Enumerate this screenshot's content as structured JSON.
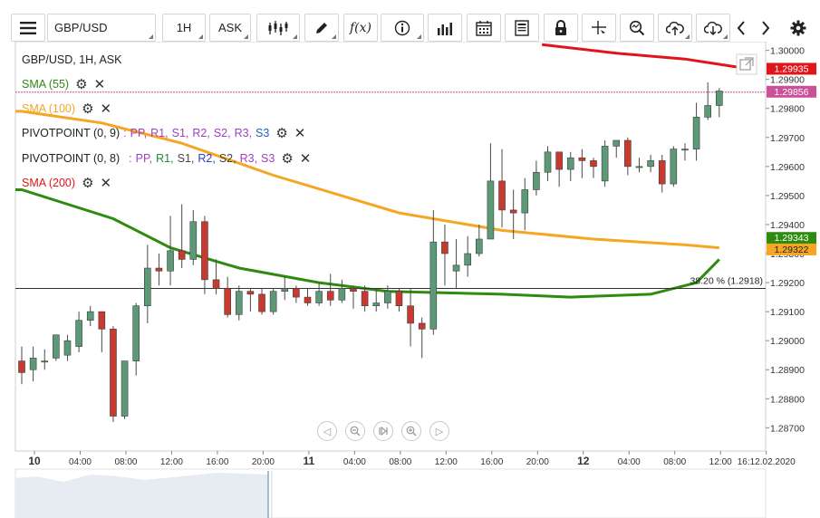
{
  "toolbar": {
    "symbol": "GBP/USD",
    "timeframe": "1H",
    "price_type": "ASK",
    "fx_label": "f(x)"
  },
  "legend": {
    "title": "GBP/USD, 1H, ASK",
    "sma55": "SMA (55)",
    "sma100": "SMA (100)",
    "pivot1": "PIVOTPOINT (0, 9)",
    "pivot2": "PIVOTPOINT (0, 8)",
    "sma200": "SMA (200)",
    "pivot_sep": ":",
    "pivot_items": [
      "PP,",
      "R1,",
      "S1,",
      "R2,",
      "S2,",
      "R3,",
      "S3"
    ],
    "pivot1_colors": [
      "#a040c0",
      "#a040c0",
      "#a040c0",
      "#a040c0",
      "#a040c0",
      "#a040c0",
      "#2060c0"
    ],
    "pivot2_colors": [
      "#a040c0",
      "#1a8a3a",
      "#444444",
      "#2b3ec8",
      "#444444",
      "#a040c0",
      "#a040c0"
    ]
  },
  "colors": {
    "up": "#5c9a77",
    "down": "#c8392f",
    "sma55": "#2f8a10",
    "sma100": "#f5a623",
    "sma200": "#e0151b",
    "current": "#cc4f9a"
  },
  "chart_data": {
    "type": "candlestick",
    "symbol": "GBP/USD",
    "ylim": [
      1.2862,
      1.3003
    ],
    "y_ticks": [
      "1.30000",
      "1.29900",
      "1.29800",
      "1.29700",
      "1.29600",
      "1.29500",
      "1.29400",
      "1.29300",
      "1.29200",
      "1.29100",
      "1.29000",
      "1.28900",
      "1.28800",
      "1.28700"
    ],
    "x_labels": [
      {
        "label": "10",
        "bold": true
      },
      {
        "label": "04:00"
      },
      {
        "label": "08:00"
      },
      {
        "label": "12:00"
      },
      {
        "label": "16:00"
      },
      {
        "label": "20:00"
      },
      {
        "label": "11",
        "bold": true
      },
      {
        "label": "04:00"
      },
      {
        "label": "08:00"
      },
      {
        "label": "12:00"
      },
      {
        "label": "16:00"
      },
      {
        "label": "20:00"
      },
      {
        "label": "12",
        "bold": true
      },
      {
        "label": "04:00"
      },
      {
        "label": "08:00"
      },
      {
        "label": "12:00"
      },
      {
        "label": "16:12.02.2020"
      }
    ],
    "candles": [
      [
        1.2893,
        1.2889,
        1.2898,
        1.2885
      ],
      [
        1.289,
        1.2894,
        1.2898,
        1.2886
      ],
      [
        1.2893,
        1.2893,
        1.2897,
        1.289
      ],
      [
        1.2894,
        1.2902,
        1.2902,
        1.2893
      ],
      [
        1.2895,
        1.29,
        1.2902,
        1.2893
      ],
      [
        1.2898,
        1.2907,
        1.291,
        1.2896
      ],
      [
        1.2907,
        1.291,
        1.2912,
        1.2905
      ],
      [
        1.291,
        1.2904,
        1.291,
        1.2896
      ],
      [
        1.2904,
        1.2874,
        1.2905,
        1.2872
      ],
      [
        1.2874,
        1.2893,
        1.2893,
        1.2873
      ],
      [
        1.2893,
        1.2912,
        1.2913,
        1.2888
      ],
      [
        1.2912,
        1.2925,
        1.2933,
        1.2906
      ],
      [
        1.2925,
        1.2924,
        1.293,
        1.2919
      ],
      [
        1.2924,
        1.2931,
        1.2943,
        1.2919
      ],
      [
        1.2931,
        1.2928,
        1.2947,
        1.2925
      ],
      [
        1.2928,
        1.2941,
        1.2945,
        1.2926
      ],
      [
        1.2941,
        1.2921,
        1.2943,
        1.2916
      ],
      [
        1.2921,
        1.2918,
        1.2928,
        1.2916
      ],
      [
        1.2918,
        1.2909,
        1.2922,
        1.2908
      ],
      [
        1.2909,
        1.2917,
        1.2919,
        1.2907
      ],
      [
        1.2917,
        1.2916,
        1.2918,
        1.291
      ],
      [
        1.2916,
        1.291,
        1.2918,
        1.2909
      ],
      [
        1.291,
        1.2917,
        1.2918,
        1.2909
      ],
      [
        1.2917,
        1.2918,
        1.2922,
        1.2914
      ],
      [
        1.2918,
        1.2915,
        1.2919,
        1.2913
      ],
      [
        1.2915,
        1.2913,
        1.2918,
        1.2912
      ],
      [
        1.2913,
        1.2917,
        1.292,
        1.2912
      ],
      [
        1.2917,
        1.2914,
        1.2923,
        1.2912
      ],
      [
        1.2914,
        1.2918,
        1.2921,
        1.2913
      ],
      [
        1.2918,
        1.2917,
        1.2919,
        1.2911
      ],
      [
        1.2917,
        1.2912,
        1.2919,
        1.291
      ],
      [
        1.2912,
        1.2913,
        1.2918,
        1.291
      ],
      [
        1.2913,
        1.2917,
        1.2919,
        1.2911
      ],
      [
        1.2917,
        1.2912,
        1.2918,
        1.291
      ],
      [
        1.2912,
        1.2906,
        1.2918,
        1.2898
      ],
      [
        1.2906,
        1.2904,
        1.2908,
        1.2894
      ],
      [
        1.2904,
        1.2934,
        1.2945,
        1.2902
      ],
      [
        1.2934,
        1.293,
        1.294,
        1.2919
      ],
      [
        1.2924,
        1.2926,
        1.2935,
        1.2918
      ],
      [
        1.2926,
        1.293,
        1.2936,
        1.2922
      ],
      [
        1.293,
        1.2935,
        1.294,
        1.2929
      ],
      [
        1.2935,
        1.2955,
        1.2968,
        1.2936
      ],
      [
        1.2955,
        1.2945,
        1.2966,
        1.2939
      ],
      [
        1.2945,
        1.2944,
        1.2952,
        1.2935
      ],
      [
        1.2944,
        1.2952,
        1.2956,
        1.2938
      ],
      [
        1.2952,
        1.2958,
        1.2962,
        1.295
      ],
      [
        1.2958,
        1.2965,
        1.2967,
        1.2955
      ],
      [
        1.2965,
        1.2959,
        1.2965,
        1.2953
      ],
      [
        1.2959,
        1.2963,
        1.2965,
        1.2955
      ],
      [
        1.2963,
        1.2962,
        1.2966,
        1.2956
      ],
      [
        1.2962,
        1.296,
        1.2963,
        1.2956
      ],
      [
        1.2955,
        1.2967,
        1.2969,
        1.2953
      ],
      [
        1.2967,
        1.2969,
        1.2969,
        1.2963
      ],
      [
        1.2969,
        1.296,
        1.297,
        1.2957
      ],
      [
        1.296,
        1.296,
        1.2963,
        1.2958
      ],
      [
        1.296,
        1.2962,
        1.2964,
        1.2958
      ],
      [
        1.2962,
        1.2954,
        1.2964,
        1.2951
      ],
      [
        1.2954,
        1.2966,
        1.2967,
        1.2953
      ],
      [
        1.2966,
        1.2966,
        1.2968,
        1.2962
      ],
      [
        1.2966,
        1.2977,
        1.2982,
        1.2962
      ],
      [
        1.2977,
        1.2981,
        1.2989,
        1.2976
      ],
      [
        1.2981,
        1.2986,
        1.2987,
        1.2977
      ]
    ],
    "sma55": [
      [
        1.2952,
        0
      ],
      [
        1.2942,
        8
      ],
      [
        1.2932,
        13
      ],
      [
        1.2925,
        19
      ],
      [
        1.292,
        26
      ],
      [
        1.2917,
        32
      ],
      [
        1.2916,
        42
      ],
      [
        1.2915,
        48
      ],
      [
        1.2916,
        55
      ],
      [
        1.292,
        59
      ],
      [
        1.2928,
        61
      ]
    ],
    "sma100": [
      [
        1.2979,
        0
      ],
      [
        1.2975,
        7
      ],
      [
        1.2968,
        14
      ],
      [
        1.2957,
        22
      ],
      [
        1.2944,
        33
      ],
      [
        1.2938,
        42
      ],
      [
        1.2935,
        50
      ],
      [
        1.2933,
        58
      ],
      [
        1.2932,
        61
      ]
    ],
    "sma200": [
      [
        1.3002,
        45.5
      ],
      [
        1.2999,
        52
      ],
      [
        1.2997,
        58
      ],
      [
        1.2994,
        63
      ]
    ],
    "fib": {
      "label": "38.20 % (1.2918)",
      "value": 1.2918
    },
    "badges": [
      {
        "text": "1.29935",
        "value": 1.29935,
        "color": "#e0151b"
      },
      {
        "text": "1.29856",
        "value": 1.29856,
        "color": "#cc4f9a"
      },
      {
        "text": "1.29343",
        "value": 1.29343,
        "color": "#2f8a10"
      },
      {
        "text": "1.29322",
        "value": 1.29322,
        "color": "#f5a623"
      }
    ]
  }
}
